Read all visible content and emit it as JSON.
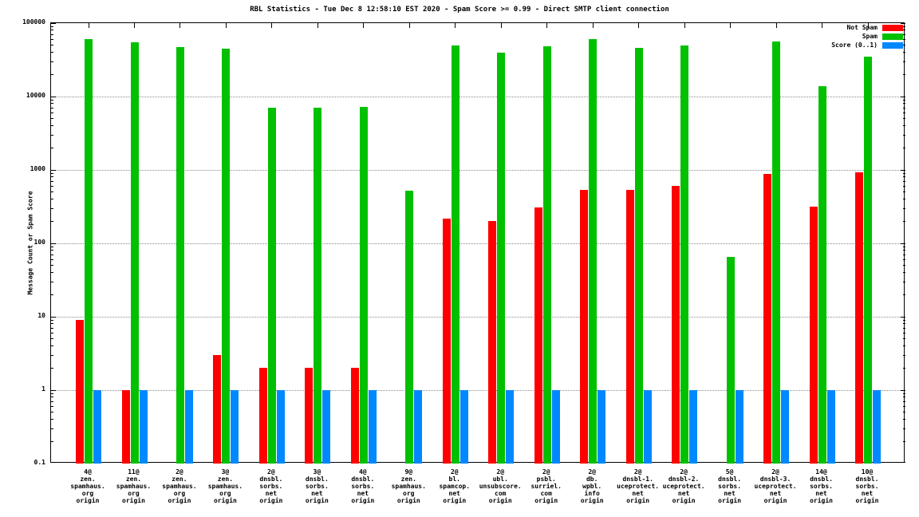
{
  "chart_data": {
    "type": "bar",
    "title": "RBL Statistics - Tue Dec  8 12:58:10 EST 2020 - Spam Score >= 0.99 - Direct SMTP client connection",
    "ylabel": "Message Count or Spam Score",
    "xlabel": "",
    "yscale": "log",
    "ylim": [
      0.1,
      100000
    ],
    "ytick_labels": [
      "100000",
      "10000",
      "1000",
      "100",
      "10",
      "1",
      "0.1"
    ],
    "grid": "horizontal-dotted",
    "legend_position": "top-right",
    "categories": [
      "4@\nzen.\nspamhaus.\norg\norigin",
      "11@\nzen.\nspamhaus.\norg\norigin",
      "2@\nzen.\nspamhaus.\norg\norigin",
      "3@\nzen.\nspamhaus.\norg\norigin",
      "2@\ndnsbl.\nsorbs.\nnet\norigin",
      "3@\ndnsbl.\nsorbs.\nnet\norigin",
      "4@\ndnsbl.\nsorbs.\nnet\norigin",
      "9@\nzen.\nspamhaus.\norg\norigin",
      "2@\nbl.\nspamcop.\nnet\norigin",
      "2@\nubl.\nunsubscore.\ncom\norigin",
      "2@\npsbl.\nsurriel.\ncom\norigin",
      "2@\ndb.\nwpbl.\ninfo\norigin",
      "2@\ndnsbl-1.\nuceprotect.\nnet\norigin",
      "2@\ndnsbl-2.\nuceprotect.\nnet\norigin",
      "5@\ndnsbl.\nsorbs.\nnet\norigin",
      "2@\ndnsbl-3.\nuceprotect.\nnet\norigin",
      "14@\ndnsbl.\nsorbs.\nnet\norigin",
      "10@\ndnsbl.\nsorbs.\nnet\norigin"
    ],
    "series": [
      {
        "name": "Not Spam",
        "color": "#ff0000",
        "values": [
          9,
          1,
          0,
          3,
          2,
          2,
          2,
          0,
          220,
          200,
          310,
          530,
          530,
          600,
          0,
          880,
          320,
          930
        ]
      },
      {
        "name": "Spam",
        "color": "#00c000",
        "values": [
          60000,
          55000,
          47000,
          45000,
          7000,
          7000,
          7200,
          520,
          50000,
          40000,
          48000,
          60000,
          46000,
          50000,
          65,
          57000,
          14000,
          35000
        ]
      },
      {
        "name": "Score (0..1)",
        "color": "#0088ff",
        "values": [
          1,
          1,
          1,
          1,
          1,
          1,
          1,
          1,
          1,
          1,
          1,
          1,
          1,
          1,
          1,
          1,
          1,
          1
        ]
      }
    ]
  }
}
